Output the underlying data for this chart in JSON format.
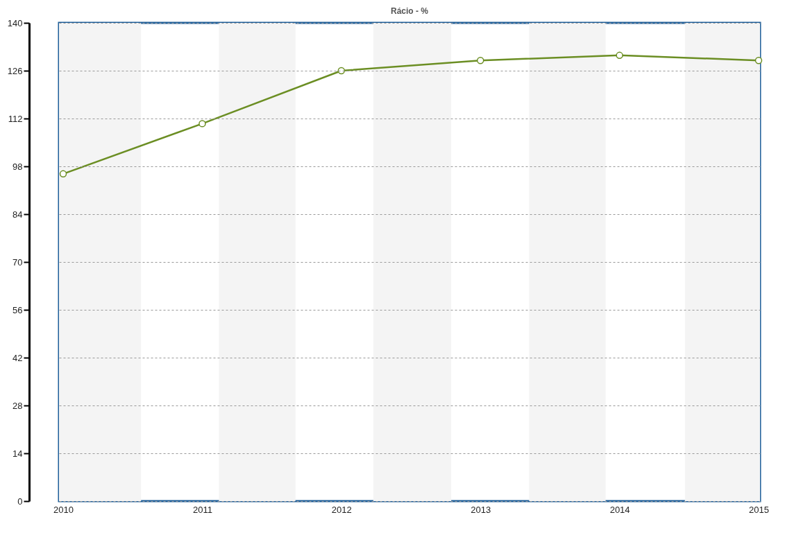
{
  "chart_data": {
    "type": "line",
    "title": "Rácio - %",
    "x": [
      2010,
      2011,
      2012,
      2013,
      2014,
      2015
    ],
    "series": [
      {
        "color": "#6b8e23",
        "values": [
          95.8,
          110.5,
          126,
          129,
          130.5,
          129
        ]
      }
    ],
    "xlim": [
      2009.97,
      2015.01
    ],
    "xticks": [
      2010,
      2011,
      2012,
      2013,
      2014,
      2015
    ],
    "ylim": [
      0,
      140
    ],
    "yticks": [
      0,
      14,
      28,
      42,
      56,
      70,
      84,
      98,
      112,
      126,
      140
    ],
    "grid": "y",
    "marker": "circle",
    "line_style": "solid",
    "bands": [
      {
        "axis": "x",
        "from": 2009.97,
        "to": 2010.56,
        "color": "#f4f4f4"
      },
      {
        "axis": "x",
        "from": 2011.12,
        "to": 2011.67,
        "color": "#f4f4f4"
      },
      {
        "axis": "x",
        "from": 2012.23,
        "to": 2012.79,
        "color": "#f4f4f4"
      },
      {
        "axis": "x",
        "from": 2013.35,
        "to": 2013.9,
        "color": "#f4f4f4"
      },
      {
        "axis": "x",
        "from": 2014.47,
        "to": 2015.01,
        "color": "#f4f4f4"
      }
    ]
  }
}
